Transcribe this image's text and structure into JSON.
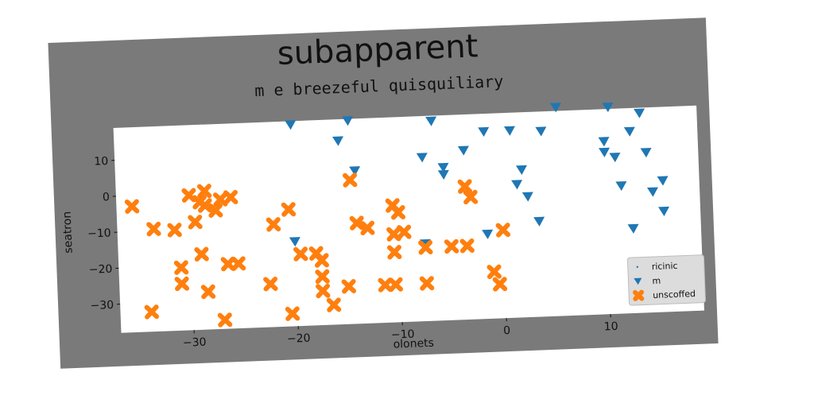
{
  "chart_data": {
    "type": "scatter",
    "title": "subapparent",
    "subtitle": "m e breezeful quisquiliary",
    "xlabel": "olonets",
    "ylabel": "seatron",
    "xlim": [
      -37,
      19
    ],
    "ylim": [
      -38,
      19
    ],
    "xticks": [
      -30,
      -20,
      -10,
      0,
      10
    ],
    "yticks": [
      -30,
      -20,
      -10,
      0,
      10
    ],
    "grid": false,
    "legend_position": "bottom-right",
    "series": [
      {
        "name": "ricinic",
        "marker": "point",
        "color": "#1f77b4",
        "points": []
      },
      {
        "name": "m",
        "marker": "triangle-down",
        "color": "#1f77b4",
        "points": [
          [
            -20,
            18
          ],
          [
            -14.5,
            18.5
          ],
          [
            -15.5,
            13
          ],
          [
            -14,
            4.5
          ],
          [
            -6.5,
            17.5
          ],
          [
            -7.5,
            7.5
          ],
          [
            -5.5,
            4.5
          ],
          [
            -5.5,
            2.5
          ],
          [
            -3.5,
            9
          ],
          [
            -1.5,
            14
          ],
          [
            1,
            14
          ],
          [
            4,
            13.5
          ],
          [
            5.5,
            20
          ],
          [
            10.5,
            19.5
          ],
          [
            13.5,
            17.5
          ],
          [
            10,
            10
          ],
          [
            10,
            7
          ],
          [
            11,
            5.5
          ],
          [
            12.5,
            12.5
          ],
          [
            14,
            6.5
          ],
          [
            11.5,
            -2.5
          ],
          [
            14.5,
            -4.5
          ],
          [
            15.5,
            -1.5
          ],
          [
            15.5,
            -10
          ],
          [
            12.5,
            -14.5
          ],
          [
            2,
            3
          ],
          [
            1.5,
            -1
          ],
          [
            2.5,
            -4.5
          ],
          [
            3.5,
            -11.5
          ],
          [
            -1.5,
            -14.5
          ],
          [
            -7.5,
            -16.5
          ],
          [
            -20,
            -14.5
          ]
        ]
      },
      {
        "name": "unscoffed",
        "marker": "x-filled",
        "color": "#ff7f0e",
        "points": [
          [
            -35.5,
            -3
          ],
          [
            -33.5,
            -9.5
          ],
          [
            -31.5,
            -10
          ],
          [
            -31,
            -20.5
          ],
          [
            -31,
            -25
          ],
          [
            -29.5,
            -8
          ],
          [
            -30,
            -0.5
          ],
          [
            -29,
            -2.5
          ],
          [
            -28.5,
            -3.5
          ],
          [
            -28.5,
            0.5
          ],
          [
            -27.5,
            -5
          ],
          [
            -27,
            -2
          ],
          [
            -26,
            -1.5
          ],
          [
            -26.5,
            -20
          ],
          [
            -25.5,
            -20
          ],
          [
            -29,
            -17
          ],
          [
            -28.5,
            -27.5
          ],
          [
            -27,
            -35.5
          ],
          [
            -34,
            -32.5
          ],
          [
            -22.5,
            -26
          ],
          [
            -22,
            -9.5
          ],
          [
            -20.5,
            -5.5
          ],
          [
            -19.5,
            -18
          ],
          [
            -18,
            -18
          ],
          [
            -17.5,
            -20
          ],
          [
            -17.5,
            -24.5
          ],
          [
            -17.5,
            -28.5
          ],
          [
            -16.5,
            -32.5
          ],
          [
            -20.5,
            -34.5
          ],
          [
            -15,
            -27.5
          ],
          [
            -14,
            -10
          ],
          [
            -13,
            -11.5
          ],
          [
            -14.5,
            2
          ],
          [
            -10.5,
            -5.5
          ],
          [
            -10,
            -7.5
          ],
          [
            -10.5,
            -13.5
          ],
          [
            -9.5,
            -13
          ],
          [
            -10.5,
            -18.5
          ],
          [
            -11.5,
            -27.5
          ],
          [
            -10.5,
            -27.5
          ],
          [
            -7.5,
            -17.5
          ],
          [
            -7.5,
            -27.5
          ],
          [
            -5,
            -17.5
          ],
          [
            -3.5,
            -17.5
          ],
          [
            -3.5,
            -1
          ],
          [
            -3,
            -4
          ],
          [
            0,
            -13.5
          ],
          [
            -1,
            -25
          ],
          [
            -0.5,
            -28.5
          ]
        ]
      }
    ]
  }
}
